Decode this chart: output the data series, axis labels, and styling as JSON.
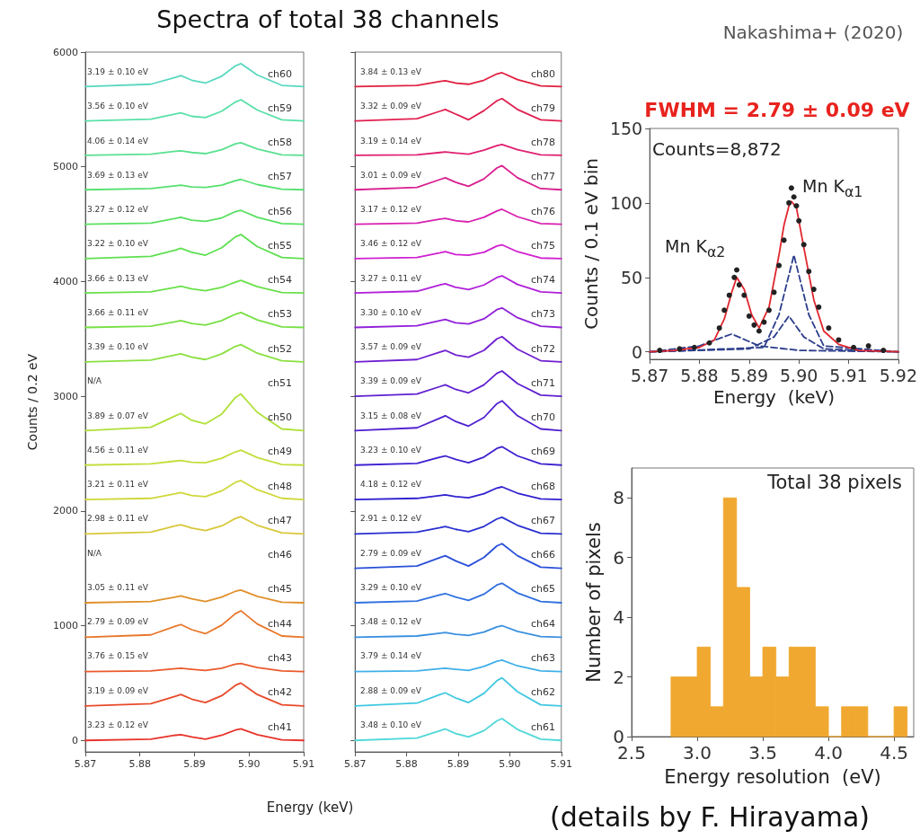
{
  "chart_data": [
    {
      "type": "line",
      "title": "Spectra of total 38 channels",
      "xlabel": "Energy  (keV)",
      "ylabel": "Counts / 0.2 eV",
      "xlim": [
        5.87,
        5.91
      ],
      "xticks": [
        5.87,
        5.88,
        5.89,
        {
          "value": 5.9,
          "label": "5.90"
        },
        5.91
      ],
      "ylim": [
        -100,
        6000
      ],
      "yticks": [
        0,
        1000,
        2000,
        3000,
        4000,
        5000,
        6000
      ],
      "x": [
        5.87,
        5.882,
        5.8865,
        5.8875,
        5.8895,
        5.892,
        5.895,
        5.8975,
        5.8985,
        5.9015,
        5.906,
        5.91
      ],
      "series": [
        {
          "name": "ch41",
          "color": "#e8332a",
          "values": [
            0,
            10,
            45,
            50,
            30,
            10,
            45,
            90,
            100,
            50,
            5,
            0
          ]
        },
        {
          "name": "ch42",
          "color": "#e84a2a",
          "values": [
            300,
            320,
            385,
            400,
            360,
            330,
            390,
            480,
            500,
            400,
            310,
            300
          ]
        },
        {
          "name": "ch43",
          "color": "#ea5a2a",
          "values": [
            600,
            605,
            625,
            630,
            620,
            610,
            630,
            665,
            670,
            635,
            605,
            600
          ]
        },
        {
          "name": "ch44",
          "color": "#e8772a",
          "values": [
            900,
            920,
            995,
            1010,
            965,
            930,
            1005,
            1105,
            1130,
            1015,
            910,
            900
          ]
        },
        {
          "name": "ch45",
          "color": "#e0902a",
          "values": [
            1200,
            1210,
            1250,
            1260,
            1235,
            1210,
            1250,
            1300,
            1310,
            1255,
            1205,
            1200
          ]
        },
        {
          "name": "ch46",
          "values": [
            null,
            null,
            null,
            null,
            null,
            null,
            null,
            null,
            null,
            null,
            null,
            null
          ]
        },
        {
          "name": "ch47",
          "color": "#d8c83a",
          "values": [
            1800,
            1815,
            1870,
            1880,
            1850,
            1830,
            1870,
            1935,
            1950,
            1875,
            1810,
            1800
          ]
        },
        {
          "name": "ch48",
          "color": "#cfd83a",
          "values": [
            2100,
            2110,
            2150,
            2160,
            2135,
            2125,
            2175,
            2250,
            2265,
            2185,
            2110,
            2100
          ]
        },
        {
          "name": "ch49",
          "color": "#c3de3a",
          "values": [
            2400,
            2410,
            2435,
            2440,
            2425,
            2420,
            2460,
            2515,
            2530,
            2465,
            2405,
            2400
          ]
        },
        {
          "name": "ch50",
          "color": "#b0e03a",
          "values": [
            2700,
            2730,
            2830,
            2850,
            2790,
            2760,
            2845,
            2990,
            3020,
            2860,
            2715,
            2700
          ]
        },
        {
          "name": "ch51",
          "values": [
            null,
            null,
            null,
            null,
            null,
            null,
            null,
            null,
            null,
            null,
            null,
            null
          ]
        },
        {
          "name": "ch52",
          "color": "#8ae040",
          "values": [
            3300,
            3315,
            3360,
            3370,
            3340,
            3320,
            3370,
            3435,
            3450,
            3375,
            3310,
            3300
          ]
        },
        {
          "name": "ch53",
          "color": "#78e045",
          "values": [
            3600,
            3610,
            3650,
            3660,
            3635,
            3620,
            3660,
            3715,
            3730,
            3665,
            3605,
            3600
          ]
        },
        {
          "name": "ch54",
          "color": "#6ae04a",
          "values": [
            3900,
            3910,
            3950,
            3960,
            3935,
            3920,
            3950,
            3995,
            4010,
            3955,
            3905,
            3900
          ]
        },
        {
          "name": "ch55",
          "color": "#5ee050",
          "values": [
            4200,
            4220,
            4275,
            4290,
            4255,
            4230,
            4295,
            4390,
            4410,
            4305,
            4210,
            4200
          ]
        },
        {
          "name": "ch56",
          "color": "#58e060",
          "values": [
            4500,
            4510,
            4550,
            4560,
            4535,
            4525,
            4555,
            4610,
            4620,
            4560,
            4505,
            4500
          ]
        },
        {
          "name": "ch57",
          "color": "#55e070",
          "values": [
            4800,
            4810,
            4835,
            4840,
            4825,
            4820,
            4840,
            4880,
            4890,
            4845,
            4805,
            4800
          ]
        },
        {
          "name": "ch58",
          "color": "#5ae090",
          "values": [
            5100,
            5110,
            5135,
            5140,
            5125,
            5115,
            5150,
            5200,
            5210,
            5155,
            5105,
            5100
          ]
        },
        {
          "name": "ch59",
          "color": "#5ae0a8",
          "values": [
            5400,
            5415,
            5460,
            5470,
            5440,
            5430,
            5485,
            5565,
            5585,
            5495,
            5410,
            5400
          ]
        },
        {
          "name": "ch60",
          "color": "#5ad8c0",
          "values": [
            5700,
            5720,
            5780,
            5795,
            5755,
            5730,
            5790,
            5880,
            5900,
            5800,
            5710,
            5700
          ]
        }
      ],
      "annotations": [
        "3.23 ± 0.12 eV",
        "3.19 ± 0.09 eV",
        "3.76 ± 0.15 eV",
        "2.79 ± 0.09 eV",
        "3.05 ± 0.11 eV",
        "N/A",
        "2.98 ± 0.11 eV",
        "3.21 ± 0.11 eV",
        "4.56 ± 0.11 eV",
        "3.89 ± 0.07 eV",
        "N/A",
        "3.39 ± 0.10 eV",
        "3.66 ± 0.11 eV",
        "3.66 ± 0.13 eV",
        "3.22 ± 0.10 eV",
        "3.27 ± 0.12 eV",
        "3.69 ± 0.13 eV",
        "4.06 ± 0.14 eV",
        "3.56 ± 0.10 eV",
        "3.19 ± 0.10 eV"
      ]
    },
    {
      "type": "line",
      "tick_labels": "x",
      "xlim": [
        5.87,
        5.91
      ],
      "xticks": [
        5.87,
        5.88,
        5.89,
        {
          "value": 5.9,
          "label": "5.90"
        },
        5.91
      ],
      "ylim": [
        -100,
        6000
      ],
      "yticks": [
        0,
        1000,
        2000,
        3000,
        4000,
        5000,
        6000
      ],
      "x": [
        5.87,
        5.882,
        5.8865,
        5.8875,
        5.8895,
        5.892,
        5.895,
        5.8975,
        5.8985,
        5.9015,
        5.906,
        5.91
      ],
      "series": [
        {
          "name": "ch61",
          "color": "#50d8d8",
          "values": [
            0,
            20,
            85,
            100,
            60,
            30,
            85,
            170,
            190,
            95,
            10,
            0
          ]
        },
        {
          "name": "ch62",
          "color": "#40c8e0",
          "values": [
            300,
            325,
            400,
            415,
            370,
            330,
            410,
            520,
            545,
            425,
            310,
            300
          ]
        },
        {
          "name": "ch63",
          "color": "#40b0e8",
          "values": [
            600,
            605,
            625,
            630,
            620,
            610,
            645,
            690,
            700,
            650,
            605,
            600
          ]
        },
        {
          "name": "ch64",
          "color": "#3a90e0",
          "values": [
            900,
            910,
            935,
            940,
            925,
            915,
            945,
            990,
            1000,
            950,
            905,
            900
          ]
        },
        {
          "name": "ch65",
          "color": "#3070e0",
          "values": [
            1200,
            1215,
            1270,
            1280,
            1250,
            1220,
            1275,
            1355,
            1370,
            1285,
            1210,
            1200
          ]
        },
        {
          "name": "ch66",
          "color": "#2a50d8",
          "values": [
            1500,
            1520,
            1595,
            1610,
            1565,
            1520,
            1595,
            1695,
            1715,
            1610,
            1510,
            1500
          ]
        },
        {
          "name": "ch67",
          "color": "#2a30d0",
          "values": [
            1800,
            1815,
            1855,
            1865,
            1840,
            1820,
            1865,
            1930,
            1945,
            1875,
            1805,
            1800
          ]
        },
        {
          "name": "ch68",
          "color": "#3020d0",
          "values": [
            2100,
            2110,
            2135,
            2140,
            2125,
            2115,
            2150,
            2200,
            2210,
            2155,
            2105,
            2100
          ]
        },
        {
          "name": "ch69",
          "color": "#4020d0",
          "values": [
            2400,
            2415,
            2470,
            2480,
            2450,
            2420,
            2470,
            2545,
            2560,
            2480,
            2410,
            2400
          ]
        },
        {
          "name": "ch70",
          "color": "#5020d0",
          "values": [
            2700,
            2725,
            2810,
            2830,
            2780,
            2740,
            2815,
            2935,
            2960,
            2830,
            2715,
            2700
          ]
        },
        {
          "name": "ch71",
          "color": "#6020d0",
          "values": [
            3000,
            3020,
            3085,
            3100,
            3060,
            3030,
            3100,
            3200,
            3220,
            3110,
            3010,
            3000
          ]
        },
        {
          "name": "ch72",
          "color": "#7020d0",
          "values": [
            3300,
            3320,
            3385,
            3400,
            3360,
            3340,
            3400,
            3500,
            3520,
            3410,
            3310,
            3300
          ]
        },
        {
          "name": "ch73",
          "color": "#9020d8",
          "values": [
            3600,
            3615,
            3660,
            3670,
            3640,
            3630,
            3675,
            3755,
            3770,
            3685,
            3610,
            3600
          ]
        },
        {
          "name": "ch74",
          "color": "#b020d8",
          "values": [
            3900,
            3915,
            3970,
            3980,
            3950,
            3930,
            3970,
            4035,
            4050,
            3975,
            3910,
            3900
          ]
        },
        {
          "name": "ch75",
          "color": "#d020d0",
          "values": [
            4200,
            4210,
            4250,
            4260,
            4235,
            4230,
            4255,
            4310,
            4320,
            4260,
            4205,
            4200
          ]
        },
        {
          "name": "ch76",
          "color": "#d820b0",
          "values": [
            4500,
            4510,
            4545,
            4550,
            4530,
            4520,
            4560,
            4615,
            4630,
            4565,
            4505,
            4500
          ]
        },
        {
          "name": "ch77",
          "color": "#d82090",
          "values": [
            4800,
            4820,
            4890,
            4905,
            4865,
            4830,
            4895,
            4990,
            5010,
            4905,
            4810,
            4800
          ]
        },
        {
          "name": "ch78",
          "color": "#e02070",
          "values": [
            5100,
            5105,
            5125,
            5130,
            5120,
            5110,
            5145,
            5185,
            5195,
            5150,
            5105,
            5100
          ]
        },
        {
          "name": "ch79",
          "color": "#e02050",
          "values": [
            5400,
            5420,
            5485,
            5500,
            5460,
            5410,
            5490,
            5575,
            5595,
            5500,
            5410,
            5400
          ]
        },
        {
          "name": "ch80",
          "color": "#e02040",
          "values": [
            5700,
            5710,
            5745,
            5750,
            5730,
            5720,
            5755,
            5810,
            5820,
            5760,
            5705,
            5700
          ]
        }
      ],
      "annotations": [
        "3.48 ± 0.10 eV",
        "2.88 ± 0.09 eV",
        "3.79 ± 0.14 eV",
        "3.48 ± 0.12 eV",
        "3.29 ± 0.10 eV",
        "2.79 ± 0.09 eV",
        "2.91 ± 0.12 eV",
        "4.18 ± 0.12 eV",
        "3.23 ± 0.10 eV",
        "3.15 ± 0.08 eV",
        "3.39 ± 0.09 eV",
        "3.57 ± 0.09 eV",
        "3.30 ± 0.10 eV",
        "3.27 ± 0.11 eV",
        "3.46 ± 0.12 eV",
        "3.17 ± 0.12 eV",
        "3.01 ± 0.09 eV",
        "3.19 ± 0.14 eV",
        "3.32 ± 0.09 eV",
        "3.84 ± 0.13 eV"
      ]
    },
    {
      "type": "line",
      "title": "FWHM = 2.79 ± 0.09 eV",
      "xlabel": "Energy  (keV)",
      "ylabel": "Counts / 0.1 eV bin",
      "xlim": [
        5.87,
        5.92
      ],
      "xticks": [
        5.87,
        5.88,
        5.89,
        {
          "value": 5.9,
          "label": "5.90"
        },
        5.91,
        5.92
      ],
      "ylim": [
        -5,
        150
      ],
      "yticks": [
        0,
        50,
        100,
        150
      ],
      "series": [
        {
          "type": "scatter",
          "marker": "circle",
          "color": "#222222",
          "x": [
            5.872,
            5.876,
            5.879,
            5.882,
            5.884,
            5.885,
            5.886,
            5.887,
            5.8875,
            5.888,
            5.889,
            5.89,
            5.891,
            5.892,
            5.893,
            5.894,
            5.895,
            5.896,
            5.897,
            5.898,
            5.8985,
            5.899,
            5.8995,
            5.9,
            5.901,
            5.902,
            5.903,
            5.904,
            5.906,
            5.908,
            5.911,
            5.914,
            5.917
          ],
          "values": [
            1,
            2,
            3,
            6,
            16,
            28,
            38,
            50,
            55,
            45,
            38,
            24,
            18,
            14,
            20,
            28,
            40,
            58,
            75,
            100,
            110,
            104,
            98,
            88,
            72,
            54,
            42,
            30,
            16,
            8,
            3,
            4,
            1
          ]
        },
        {
          "color": "#2c3e8c",
          "line_style": "dashed",
          "x": [
            5.87,
            5.88,
            5.8865,
            5.892,
            5.9,
            5.92
          ],
          "values": [
            0,
            4,
            12,
            4,
            1,
            0
          ]
        },
        {
          "color": "#2c3e8c",
          "line_style": "dashed",
          "x": [
            5.87,
            5.89,
            5.895,
            5.898,
            5.901,
            5.905,
            5.92
          ],
          "values": [
            0,
            2,
            10,
            24,
            10,
            2,
            0
          ]
        },
        {
          "color": "#2c3e8c",
          "line_style": "dashed",
          "x": [
            5.87,
            5.893,
            5.896,
            5.899,
            5.902,
            5.905,
            5.92
          ],
          "values": [
            0,
            3,
            25,
            65,
            25,
            4,
            0
          ]
        },
        {
          "color": "#e0262e",
          "line_style": "solid",
          "x": [
            5.87,
            5.875,
            5.88,
            5.883,
            5.885,
            5.8865,
            5.8875,
            5.889,
            5.8905,
            5.892,
            5.894,
            5.896,
            5.897,
            5.898,
            5.8985,
            5.8995,
            5.901,
            5.903,
            5.905,
            5.908,
            5.912,
            5.92
          ],
          "values": [
            0,
            1,
            3,
            8,
            22,
            40,
            50,
            42,
            25,
            16,
            30,
            65,
            85,
            98,
            101,
            97,
            70,
            35,
            14,
            5,
            1,
            0
          ]
        }
      ],
      "annotations": [
        "Nakashima+ (2020)",
        "Counts=8,872",
        "Mn K$_{α1}$",
        "Mn K$_{α2}$"
      ]
    },
    {
      "type": "histogram",
      "xlabel": "Energy resolution  (eV)",
      "ylabel": "Number of pixels",
      "color": "#f0a830",
      "xlim": [
        2.5,
        4.65
      ],
      "xticks": [
        2.5,
        {
          "value": 3,
          "label": "3.0"
        },
        3.5,
        {
          "value": 4,
          "label": "4.0"
        },
        4.5
      ],
      "ylim": [
        0,
        9
      ],
      "yticks": [
        0,
        2,
        4,
        6,
        8
      ],
      "bins": [
        2.8,
        2.9,
        3.0,
        3.1,
        3.2,
        3.3,
        3.4,
        3.5,
        3.6,
        3.7,
        3.8,
        3.9,
        4.0,
        4.1,
        4.2,
        4.3,
        4.4,
        4.5,
        4.6
      ],
      "values": [
        2,
        2,
        3,
        1,
        8,
        5,
        2,
        3,
        2,
        3,
        3,
        1,
        0,
        1,
        1,
        0,
        0,
        1
      ],
      "annotations": [
        "Total 38 pixels",
        "(details by F. Hirayama)"
      ]
    }
  ]
}
